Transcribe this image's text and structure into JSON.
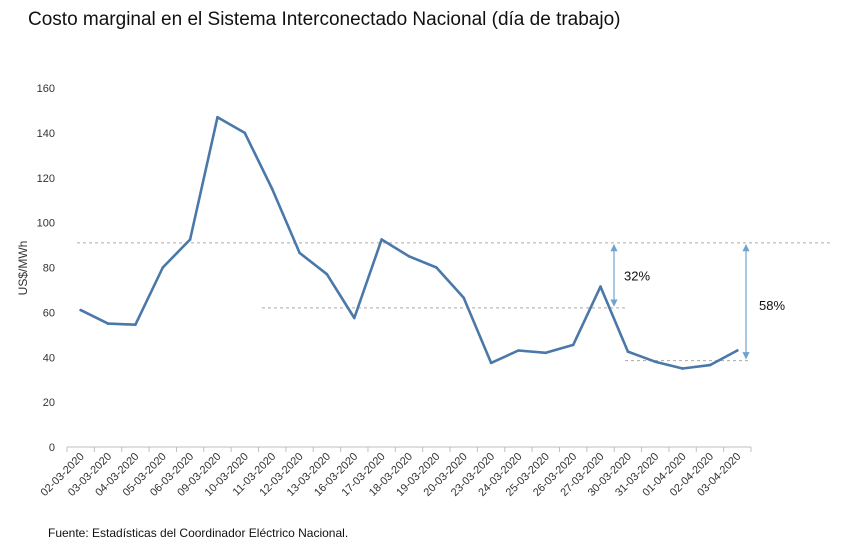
{
  "title": "Costo marginal en el Sistema Interconectado Nacional (día de trabajo)",
  "source": "Fuente: Estadísticas del Coordinador Eléctrico Nacional.",
  "colors": {
    "line": "#4a78a8",
    "reference": "#aaaaaa",
    "arrow": "#6fa3cf"
  },
  "chart_data": {
    "type": "line",
    "title": "Costo marginal en el Sistema Interconectado Nacional (día de trabajo)",
    "xlabel": "",
    "ylabel": "US$/MWh",
    "ylim": [
      0,
      160
    ],
    "yticks": [
      0,
      20,
      40,
      60,
      80,
      100,
      120,
      140,
      160
    ],
    "grid": false,
    "categories": [
      "02-03-2020",
      "03-03-2020",
      "04-03-2020",
      "05-03-2020",
      "06-03-2020",
      "09-03-2020",
      "10-03-2020",
      "11-03-2020",
      "12-03-2020",
      "13-03-2020",
      "16-03-2020",
      "17-03-2020",
      "18-03-2020",
      "19-03-2020",
      "20-03-2020",
      "23-03-2020",
      "24-03-2020",
      "25-03-2020",
      "26-03-2020",
      "27-03-2020",
      "30-03-2020",
      "31-03-2020",
      "01-04-2020",
      "02-04-2020",
      "03-04-2020"
    ],
    "series": [
      {
        "values": [
          61,
          55,
          54.5,
          80,
          92.5,
          147,
          140,
          115,
          86.5,
          77,
          57.5,
          92.5,
          85,
          80,
          66.5,
          37.5,
          43,
          42,
          45.5,
          71.5,
          42.5,
          38,
          35,
          36.5,
          43
        ]
      }
    ],
    "reference_lines": [
      91,
      62,
      38.5
    ],
    "annotations": [
      {
        "text": "32%",
        "from": 91,
        "to": 62
      },
      {
        "text": "58%",
        "from": 91,
        "to": 38.5
      }
    ]
  }
}
